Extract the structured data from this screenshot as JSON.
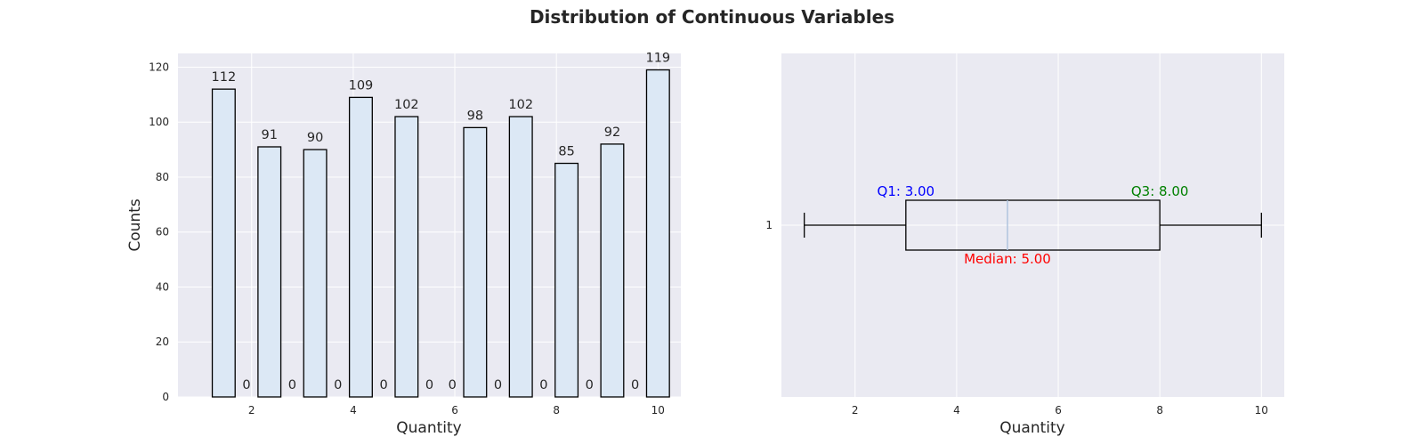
{
  "suptitle": "Distribution of Continuous Variables",
  "chart_data": [
    {
      "type": "bar",
      "title": "",
      "xlabel": "Quantity",
      "ylabel": "Counts",
      "xlim": [
        0.55,
        10.45
      ],
      "ylim": [
        0,
        125
      ],
      "grid": true,
      "xticks": [
        2,
        4,
        6,
        8,
        10
      ],
      "yticks": [
        0,
        20,
        40,
        60,
        80,
        100,
        120
      ],
      "bars": [
        {
          "x": 1.45,
          "value": 112,
          "label": "112"
        },
        {
          "x": 1.9,
          "value": 0,
          "label": "0"
        },
        {
          "x": 2.35,
          "value": 91,
          "label": "91"
        },
        {
          "x": 2.8,
          "value": 0,
          "label": "0"
        },
        {
          "x": 3.25,
          "value": 90,
          "label": "90"
        },
        {
          "x": 3.7,
          "value": 0,
          "label": "0"
        },
        {
          "x": 4.15,
          "value": 109,
          "label": "109"
        },
        {
          "x": 4.6,
          "value": 0,
          "label": "0"
        },
        {
          "x": 5.05,
          "value": 102,
          "label": "102"
        },
        {
          "x": 5.5,
          "value": 0,
          "label": "0"
        },
        {
          "x": 5.95,
          "value": 0,
          "label": "0"
        },
        {
          "x": 6.4,
          "value": 98,
          "label": "98"
        },
        {
          "x": 6.85,
          "value": 0,
          "label": "0"
        },
        {
          "x": 7.3,
          "value": 102,
          "label": "102"
        },
        {
          "x": 7.75,
          "value": 0,
          "label": "0"
        },
        {
          "x": 8.2,
          "value": 85,
          "label": "85"
        },
        {
          "x": 8.65,
          "value": 0,
          "label": "0"
        },
        {
          "x": 9.1,
          "value": 92,
          "label": "92"
        },
        {
          "x": 9.55,
          "value": 0,
          "label": "0"
        },
        {
          "x": 10.0,
          "value": 119,
          "label": "119"
        }
      ],
      "colors": {
        "bar_fill": "#dce8f5",
        "bar_edge": "#000000",
        "axes_bg": "#eaeaf2",
        "grid": "#ffffff"
      }
    },
    {
      "type": "box",
      "title": "",
      "xlabel": "Quantity",
      "ylabel": "",
      "xlim": [
        0.55,
        10.45
      ],
      "xticks": [
        2,
        4,
        6,
        8,
        10
      ],
      "yticks": [
        "1"
      ],
      "orientation": "horizontal",
      "min": 1,
      "q1": 3,
      "median": 5,
      "q3": 8,
      "max": 10,
      "annotations": {
        "q1": "Q1: 3.00",
        "median": "Median: 5.00",
        "q3": "Q3: 8.00"
      },
      "colors": {
        "q1": "#0000ff",
        "median_text": "#ff0000",
        "q3": "#008000",
        "median_line": "#b0c4de",
        "box": "#000000",
        "axes_bg": "#eaeaf2",
        "grid": "#ffffff"
      }
    }
  ]
}
